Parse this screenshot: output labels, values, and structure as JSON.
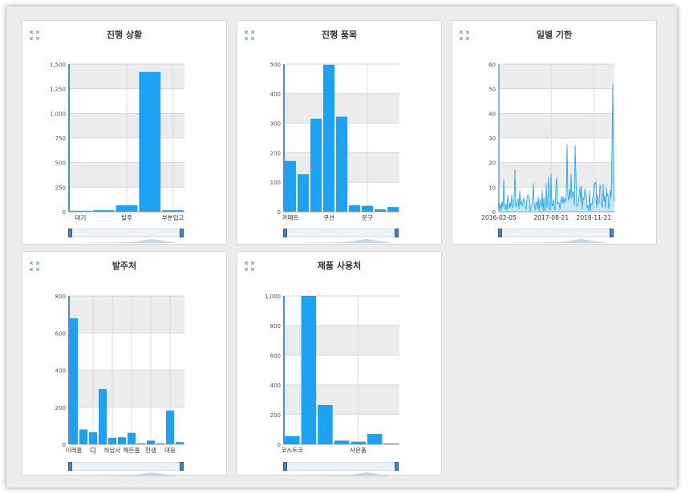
{
  "colors": {
    "bar": "#1da1f2",
    "band": "#ececec",
    "axis": "#8fa3b8",
    "grid": "#d8d8d8",
    "text": "#333333",
    "tick": "#555555",
    "frame": "#ececec"
  },
  "icons": {
    "expand": "expand-icon"
  },
  "chart_data": [
    {
      "id": "status",
      "type": "bar",
      "title": "진행 상황",
      "categories": [
        "대기",
        "",
        "발주",
        "",
        "부분입고"
      ],
      "tick_labels": [
        "대기",
        "발주",
        "부분입고"
      ],
      "values": [
        10,
        15,
        65,
        1420,
        15
      ],
      "ylim": [
        0,
        1500
      ],
      "yticks": [
        "0",
        "250",
        "500",
        "750",
        "1,000",
        "1,250",
        "1,500"
      ],
      "ytick_values": [
        0,
        250,
        500,
        750,
        1000,
        1250,
        1500
      ],
      "grid": true
    },
    {
      "id": "items",
      "type": "bar",
      "title": "진행 품목",
      "categories": [
        "카페트",
        "",
        "",
        "쿠션",
        "",
        "",
        "문구",
        "",
        ""
      ],
      "tick_labels": [
        "카페트",
        "쿠션",
        "문구"
      ],
      "values": [
        172,
        127,
        315,
        498,
        322,
        22,
        20,
        8,
        16
      ],
      "ylim": [
        0,
        500
      ],
      "yticks": [
        "0",
        "100",
        "200",
        "300",
        "400",
        "500"
      ],
      "ytick_values": [
        0,
        100,
        200,
        300,
        400,
        500
      ],
      "grid": true
    },
    {
      "id": "daily",
      "type": "line",
      "title": "일별 기한",
      "x_tick_labels": [
        "2016-02-05",
        "2017-08-21",
        "2018-11-21"
      ],
      "x_start": "2016-02-05",
      "x_end": "2019-06-30",
      "x_tick_dates": [
        "2016-02-05",
        "2017-08-21",
        "2018-11-21"
      ],
      "ylim": [
        0,
        60
      ],
      "yticks": [
        "0",
        "10",
        "20",
        "30",
        "40",
        "50",
        "60"
      ],
      "ytick_values": [
        0,
        10,
        20,
        30,
        40,
        50,
        60
      ],
      "peak_value": 52,
      "grid": true
    },
    {
      "id": "vendor",
      "type": "bar",
      "title": "발주처",
      "categories": [
        "이레홈",
        "",
        "CJ",
        "",
        "하남사",
        "",
        "해든홈",
        "",
        "한샘",
        "",
        "대웅",
        ""
      ],
      "tick_labels": [
        "이레홈",
        "CJ",
        "하남사",
        "해든홈",
        "한샘",
        "대웅"
      ],
      "values": [
        680,
        80,
        65,
        298,
        35,
        38,
        62,
        5,
        20,
        5,
        182,
        12
      ],
      "ylim": [
        0,
        800
      ],
      "yticks": [
        "0",
        "200",
        "400",
        "600",
        "800"
      ],
      "ytick_values": [
        0,
        200,
        400,
        600,
        800
      ],
      "grid": true
    },
    {
      "id": "user",
      "type": "bar",
      "title": "제품 사용처",
      "categories": [
        "코스트코",
        "",
        "",
        "",
        "사은품",
        "",
        ""
      ],
      "tick_labels": [
        "코스트코",
        "사은품"
      ],
      "values": [
        55,
        1000,
        265,
        25,
        18,
        70,
        5
      ],
      "ylim": [
        0,
        1000
      ],
      "yticks": [
        "0",
        "200",
        "400",
        "600",
        "800",
        "1,000"
      ],
      "ytick_values": [
        0,
        200,
        400,
        600,
        800,
        1000
      ],
      "grid": true
    }
  ]
}
